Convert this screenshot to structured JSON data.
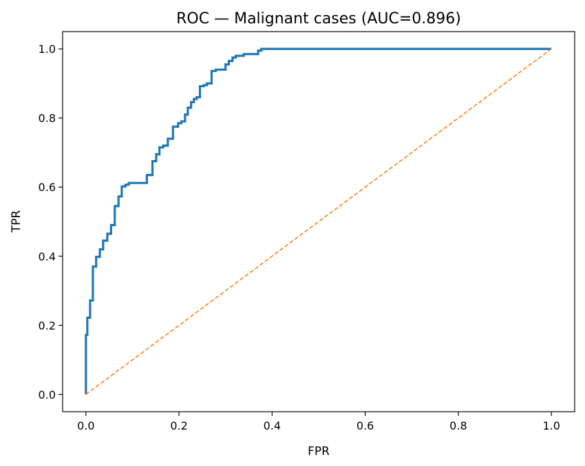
{
  "chart_data": {
    "type": "line",
    "title": "ROC — Malignant cases (AUC=0.896)",
    "xlabel": "FPR",
    "ylabel": "TPR",
    "xlim": [
      -0.05,
      1.05
    ],
    "ylim": [
      -0.05,
      1.05
    ],
    "xticks": [
      0.0,
      0.2,
      0.4,
      0.6,
      0.8,
      1.0
    ],
    "xtick_labels": [
      "0.0",
      "0.2",
      "0.4",
      "0.6",
      "0.8",
      "1.0"
    ],
    "yticks": [
      0.0,
      0.2,
      0.4,
      0.6,
      0.8,
      1.0
    ],
    "ytick_labels": [
      "0.0",
      "0.2",
      "0.4",
      "0.6",
      "0.8",
      "1.0"
    ],
    "grid": false,
    "series": [
      {
        "color": "#1f77b4",
        "style": "solid-step",
        "x": [
          0.0,
          0.0,
          0.003,
          0.003,
          0.009,
          0.009,
          0.015,
          0.015,
          0.022,
          0.022,
          0.03,
          0.03,
          0.037,
          0.037,
          0.046,
          0.046,
          0.054,
          0.054,
          0.062,
          0.062,
          0.07,
          0.07,
          0.077,
          0.077,
          0.085,
          0.085,
          0.092,
          0.092,
          0.131,
          0.131,
          0.143,
          0.143,
          0.151,
          0.151,
          0.158,
          0.158,
          0.166,
          0.166,
          0.176,
          0.176,
          0.187,
          0.187,
          0.198,
          0.198,
          0.205,
          0.205,
          0.213,
          0.213,
          0.219,
          0.219,
          0.226,
          0.226,
          0.232,
          0.232,
          0.238,
          0.238,
          0.245,
          0.245,
          0.253,
          0.253,
          0.26,
          0.26,
          0.27,
          0.27,
          0.279,
          0.279,
          0.3,
          0.3,
          0.307,
          0.307,
          0.315,
          0.315,
          0.322,
          0.322,
          0.339,
          0.339,
          0.37,
          0.37,
          0.377,
          0.377,
          1.0
        ],
        "y": [
          0.0,
          0.172,
          0.172,
          0.222,
          0.222,
          0.272,
          0.272,
          0.37,
          0.37,
          0.398,
          0.398,
          0.42,
          0.42,
          0.445,
          0.445,
          0.465,
          0.465,
          0.49,
          0.49,
          0.545,
          0.545,
          0.573,
          0.573,
          0.602,
          0.602,
          0.607,
          0.607,
          0.612,
          0.612,
          0.635,
          0.635,
          0.675,
          0.675,
          0.695,
          0.695,
          0.715,
          0.715,
          0.72,
          0.72,
          0.74,
          0.74,
          0.775,
          0.775,
          0.785,
          0.785,
          0.79,
          0.79,
          0.81,
          0.81,
          0.83,
          0.83,
          0.846,
          0.846,
          0.855,
          0.855,
          0.86,
          0.86,
          0.892,
          0.892,
          0.895,
          0.895,
          0.9,
          0.9,
          0.936,
          0.936,
          0.94,
          0.94,
          0.955,
          0.955,
          0.965,
          0.965,
          0.975,
          0.975,
          0.98,
          0.98,
          0.985,
          0.985,
          0.995,
          0.995,
          1.0,
          1.0
        ]
      },
      {
        "color": "#ff7f0e",
        "style": "dashed",
        "x": [
          0.0,
          1.0
        ],
        "y": [
          0.0,
          1.0
        ]
      }
    ]
  }
}
